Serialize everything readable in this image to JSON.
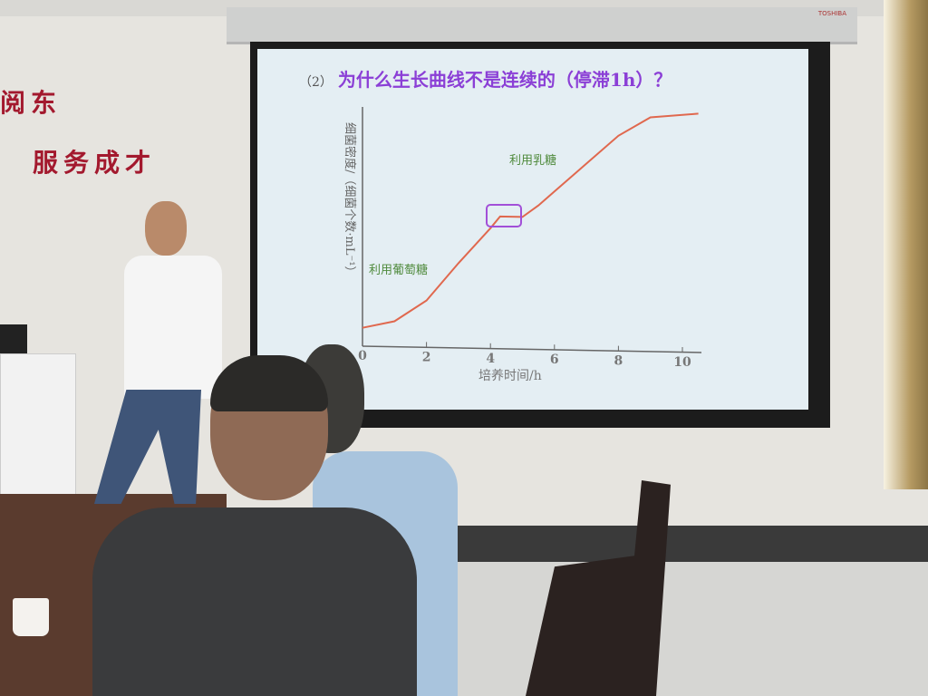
{
  "wall_slogans": {
    "line1": "阅东",
    "line2": "服务成才"
  },
  "projector_brand": "TOSHIBA",
  "slide": {
    "question_number": "（2）",
    "question": "为什么生长曲线不是连续的（停滞1h）？",
    "y_axis_label": "细菌密度/（细菌个数·mL⁻¹）",
    "x_axis_label": "培养时间/h",
    "x_ticks": [
      "0",
      "2",
      "4",
      "6",
      "8",
      "10"
    ],
    "annotation_glucose": "利用葡萄糖",
    "annotation_lactose": "利用乳糖",
    "curve_color": "#e0684e",
    "highlight_color": "#a24fd8",
    "annotation_color": "#4f8a3c"
  },
  "chart_data": {
    "type": "line",
    "xlabel": "培养时间/h",
    "ylabel": "细菌密度/（细菌个数·mL⁻¹）",
    "xlim": [
      0,
      10.5
    ],
    "x": [
      0,
      1,
      2,
      3,
      4,
      4.3,
      5,
      5.5,
      6,
      7,
      8,
      9,
      10.5
    ],
    "y": [
      0.07,
      0.1,
      0.19,
      0.35,
      0.5,
      0.55,
      0.55,
      0.6,
      0.66,
      0.78,
      0.9,
      0.98,
      1.0
    ]
  }
}
